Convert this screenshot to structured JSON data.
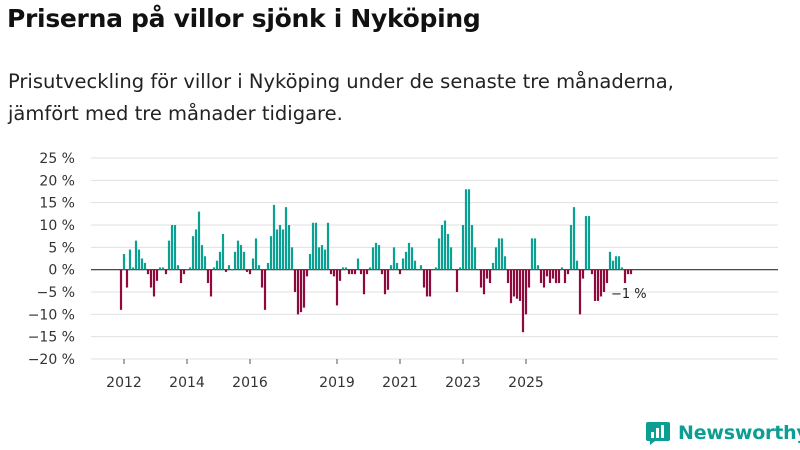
{
  "title": "Priserna på villor sjönk i Nyköping",
  "subtitle_line1": "Prisutveckling för villor i Nyköping under de senaste tre månaderna,",
  "subtitle_line2": "jämfört med tre månader tidigare.",
  "brand": "Newsworthy",
  "colors": {
    "positive": "#0aa092",
    "negative": "#8e0a3c",
    "grid": "#e0e0e0",
    "brand": "#0b9e93"
  },
  "chart_data": {
    "type": "bar",
    "ylabel": "",
    "xlabel": "",
    "ylim": [
      -20,
      25
    ],
    "yticks": [
      25,
      20,
      15,
      10,
      5,
      0,
      -5,
      -10,
      -15,
      -20
    ],
    "ytick_labels": [
      "25 %",
      "20 %",
      "15 %",
      "10 %",
      "5 %",
      "0 %",
      "−5 %",
      "−10 %",
      "−15 %",
      "−20 %"
    ],
    "xticks": [
      {
        "label": "2012",
        "index": 1
      },
      {
        "label": "2014",
        "index": 22
      },
      {
        "label": "2016",
        "index": 43
      },
      {
        "label": "2019",
        "index": 72
      },
      {
        "label": "2021",
        "index": 93
      },
      {
        "label": "2023",
        "index": 114
      },
      {
        "label": "2025",
        "index": 135
      }
    ],
    "last_value_label": "−1 %",
    "values": [
      -9,
      3.5,
      -4,
      4.5,
      0.5,
      6.5,
      4.5,
      2.5,
      1.5,
      -1,
      -4,
      -6,
      -2.5,
      0.5,
      0.5,
      -1,
      6.5,
      10,
      10,
      1,
      -3,
      -1,
      0,
      0.5,
      7.5,
      9,
      13,
      5.5,
      3,
      -3,
      -6,
      0.5,
      2,
      4,
      8,
      -0.5,
      1,
      0,
      4,
      6.5,
      5.5,
      4,
      -0.5,
      -1,
      2.5,
      7,
      1,
      -4,
      -9,
      1.5,
      7.5,
      14.5,
      9,
      10,
      9,
      14,
      10,
      5,
      -5,
      -10,
      -9.5,
      -8.5,
      -1.5,
      3.5,
      10.5,
      10.5,
      5,
      5.5,
      4.5,
      10.5,
      -1,
      -1.5,
      -8,
      -2.5,
      0.5,
      0.5,
      -1,
      -1,
      -1,
      2.5,
      -1,
      -5.5,
      -1,
      0.5,
      5,
      6,
      5.5,
      -1,
      -5.5,
      -4.5,
      1,
      5,
      1.5,
      -1,
      2.5,
      4,
      6,
      5,
      2,
      0,
      1,
      -4,
      -6,
      -6,
      0,
      0.5,
      7,
      10,
      11,
      8,
      5,
      0,
      -5,
      0.5,
      10,
      18,
      18,
      10,
      5,
      0,
      -4,
      -5.5,
      -2,
      -3,
      1.5,
      5,
      7,
      7,
      3,
      -3,
      -7.5,
      -6,
      -6.5,
      -7,
      -14,
      -10,
      -4,
      7,
      7,
      1,
      -3,
      -4,
      -1.5,
      -3,
      -2,
      -3,
      -3,
      0.5,
      -3,
      -1,
      10,
      14,
      2,
      -10,
      -2,
      12,
      12,
      -1,
      -7,
      -7,
      -6,
      -5,
      -3,
      4,
      2,
      3,
      3,
      0.5,
      -3,
      -1,
      -1
    ]
  }
}
